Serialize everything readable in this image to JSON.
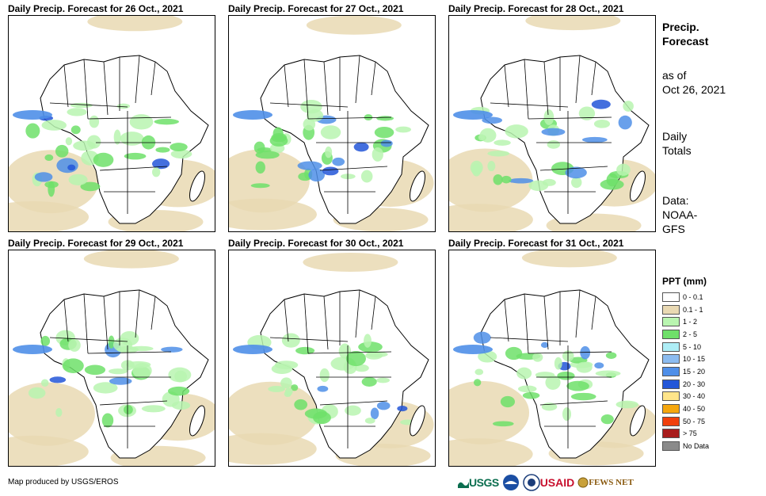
{
  "panels": [
    {
      "title": "Daily Precip. Forecast for 26 Oct., 2021"
    },
    {
      "title": "Daily Precip. Forecast for 27 Oct., 2021"
    },
    {
      "title": "Daily Precip. Forecast for 28 Oct., 2021"
    },
    {
      "title": "Daily Precip. Forecast for 29 Oct., 2021"
    },
    {
      "title": "Daily Precip. Forecast for 30 Oct., 2021"
    },
    {
      "title": "Daily Precip. Forecast for 31 Oct., 2021"
    }
  ],
  "sidebar": {
    "title_line1": "Precip.",
    "title_line2": "Forecast",
    "asof_line1": "as of",
    "asof_line2": "Oct 26, 2021",
    "totals_line1": "Daily",
    "totals_line2": "Totals",
    "source_line1": "Data:",
    "source_line2": "NOAA-",
    "source_line3": "GFS"
  },
  "legend": {
    "title": "PPT (mm)",
    "items": [
      {
        "label": "0 - 0.1",
        "color": "#ffffff"
      },
      {
        "label": "0.1 - 1",
        "color": "#e9d9b3"
      },
      {
        "label": "1 - 2",
        "color": "#b9f5b0"
      },
      {
        "label": "2 - 5",
        "color": "#6fe06a"
      },
      {
        "label": "5 - 10",
        "color": "#aeeef6"
      },
      {
        "label": "10 - 15",
        "color": "#8cbcf0"
      },
      {
        "label": "15 - 20",
        "color": "#4f8fe8"
      },
      {
        "label": "20 - 30",
        "color": "#2356d8"
      },
      {
        "label": "30 - 40",
        "color": "#ffe58a"
      },
      {
        "label": "40 - 50",
        "color": "#f5a70e"
      },
      {
        "label": "50 - 75",
        "color": "#f0400c"
      },
      {
        "label": "> 75",
        "color": "#a81c1c"
      },
      {
        "label": "No Data",
        "color": "#8a8a8a"
      }
    ]
  },
  "footer": {
    "credit": "Map produced by USGS/EROS",
    "logo_usgs": "USGS",
    "logo_usaid": "USAID",
    "logo_fews": "FEWS NET"
  },
  "colors": {
    "sand": "#e9d9b3",
    "light_green": "#b9f5b0",
    "green": "#6fe06a",
    "blue": "#4f8fe8",
    "dark_blue": "#2356d8",
    "red": "#f0400c"
  }
}
